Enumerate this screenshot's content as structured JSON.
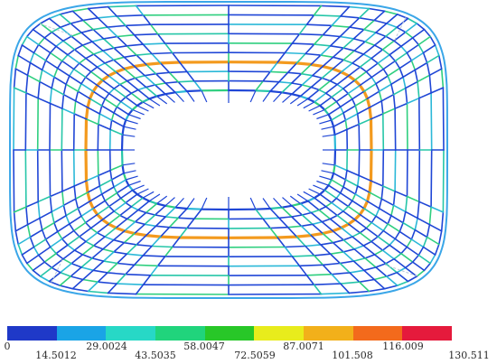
{
  "contour_legend": {
    "colors": [
      "#1f39c8",
      "#1aa4e6",
      "#27d8c6",
      "#20d47c",
      "#28c728",
      "#e8ec1c",
      "#f2b01a",
      "#f36a1c",
      "#e51a3c"
    ],
    "labels": [
      "0",
      "14.5012",
      "29.0024",
      "43.5035",
      "58.0047",
      "72.5059",
      "87.0071",
      "101.508",
      "116.009",
      "130.511"
    ]
  },
  "model": {
    "description_colors": {
      "background": "#ffffff",
      "ring_highlight": "#f39a1e",
      "dominant_member": "#1f46d6",
      "secondary_member": "#2bb8d8",
      "accent_member": "#2fcf7f"
    }
  }
}
